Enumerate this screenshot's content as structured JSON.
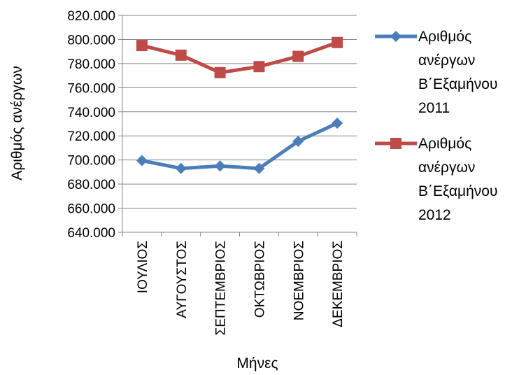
{
  "chart_data": {
    "type": "line",
    "categories": [
      "ΙΟΥΛΙΟΣ",
      "ΑΥΓΟΥΣΤΟΣ",
      "ΣΕΠΤΕΜΒΡΙΟΣ",
      "ΟΚΤΩΒΡΙΟΣ",
      "ΝΟΕΜΒΡΙΟΣ",
      "ΔΕΚΕΜΒΡΙΟΣ"
    ],
    "series": [
      {
        "name": "Αριθμός ανέργων Β΄Εξαμήνου 2011",
        "legend_lines": [
          "Αριθμός",
          "ανέργων",
          "Β΄Εξαμήνου",
          "2011"
        ],
        "color": "#4a7ebb",
        "marker": "diamond",
        "values": [
          699500,
          693000,
          695000,
          693000,
          715500,
          730500
        ]
      },
      {
        "name": "Αριθμός ανέργων Β΄Εξαμήνου 2012",
        "legend_lines": [
          "Αριθμός",
          "ανέργων",
          "Β΄Εξαμήνου",
          "2012"
        ],
        "color": "#be4b48",
        "marker": "square",
        "values": [
          795000,
          787000,
          772500,
          777500,
          786000,
          797500
        ]
      }
    ],
    "title": "",
    "xlabel": "Μήνες",
    "ylabel": "Αριθμός ανέργων",
    "ylim": [
      640000,
      820000
    ],
    "ytick_step": 20000,
    "ytick_labels": [
      "640.000",
      "660.000",
      "680.000",
      "700.000",
      "720.000",
      "740.000",
      "760.000",
      "780.000",
      "800.000",
      "820.000"
    ],
    "grid": "horizontal",
    "legend_position": "right"
  }
}
